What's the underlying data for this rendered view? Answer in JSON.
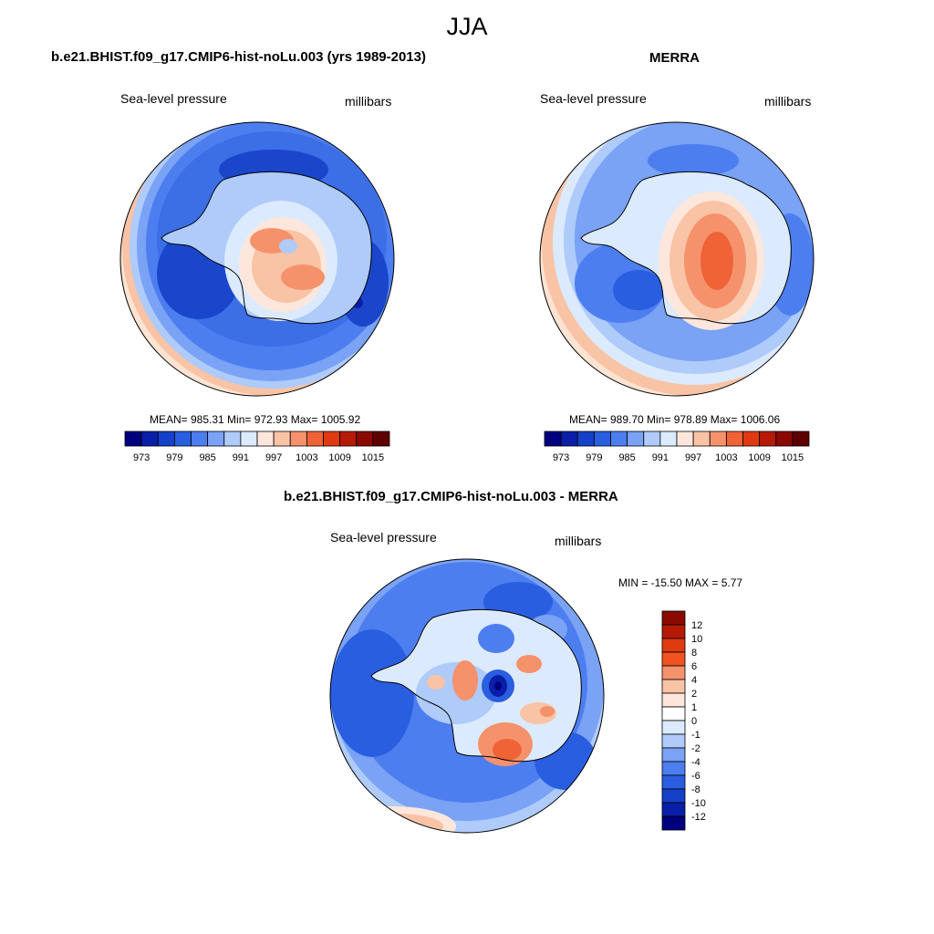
{
  "figure": {
    "season": "JJA"
  },
  "panels": [
    {
      "title": "b.e21.BHIST.f09_g17.CMIP6-hist-noLu.003 (yrs 1989-2013)",
      "left_label": "Sea-level pressure",
      "right_label": "millibars",
      "stats": "MEAN= 985.31   Min= 972.93   Max= 1005.92",
      "colorbar": {
        "orientation": "horizontal",
        "levels": [
          973,
          976,
          979,
          982,
          985,
          988,
          991,
          994,
          997,
          1000,
          1003,
          1006,
          1009,
          1012,
          1015
        ],
        "labels": [
          "973",
          "979",
          "985",
          "991",
          "997",
          "1003",
          "1009",
          "1015"
        ],
        "colors": [
          "#00007f",
          "#0a1fa8",
          "#1540c8",
          "#2a5ee0",
          "#4d7ef0",
          "#7aa2f5",
          "#aecbfa",
          "#dceafd",
          "#fde7dc",
          "#f9c3a5",
          "#f5926c",
          "#ef6337",
          "#e03a12",
          "#b51a07",
          "#8a0a02",
          "#5e0000"
        ]
      }
    },
    {
      "title": "MERRA",
      "left_label": "Sea-level pressure",
      "right_label": "millibars",
      "stats": "MEAN= 989.70   Min= 978.89   Max= 1006.06",
      "colorbar": {
        "orientation": "horizontal",
        "levels": [
          973,
          976,
          979,
          982,
          985,
          988,
          991,
          994,
          997,
          1000,
          1003,
          1006,
          1009,
          1012,
          1015
        ],
        "labels": [
          "973",
          "979",
          "985",
          "991",
          "997",
          "1003",
          "1009",
          "1015"
        ],
        "colors": [
          "#00007f",
          "#0a1fa8",
          "#1540c8",
          "#2a5ee0",
          "#4d7ef0",
          "#7aa2f5",
          "#aecbfa",
          "#dceafd",
          "#fde7dc",
          "#f9c3a5",
          "#f5926c",
          "#ef6337",
          "#e03a12",
          "#b51a07",
          "#8a0a02",
          "#5e0000"
        ]
      }
    },
    {
      "title": "b.e21.BHIST.f09_g17.CMIP6-hist-noLu.003 - MERRA",
      "left_label": "Sea-level pressure",
      "right_label": "millibars",
      "stats": "MIN = -15.50 MAX =    5.77",
      "colorbar": {
        "orientation": "vertical",
        "levels": [
          12,
          10,
          8,
          6,
          4,
          2,
          1,
          0,
          -1,
          -2,
          -4,
          -6,
          -8,
          -10,
          -12
        ],
        "labels": [
          "12",
          "10",
          "8",
          "6",
          "4",
          "2",
          "1",
          "0",
          "-1",
          "-2",
          "-4",
          "-6",
          "-8",
          "-10",
          "-12"
        ],
        "colors": [
          "#8a0a02",
          "#b51a07",
          "#e03a12",
          "#f0531f",
          "#f5926c",
          "#f9c3a5",
          "#fde7dc",
          "#ffffff",
          "#dceafd",
          "#aecbfa",
          "#7aa2f5",
          "#4d7ef0",
          "#2a5ee0",
          "#1540c8",
          "#0a1fa8",
          "#00007f"
        ]
      }
    }
  ],
  "colors": {
    "ocean_mid": "#3c6ee6",
    "ocean_deep": "#1a46cc",
    "ocean_light": "#8fb2f5",
    "ridge": "#f7b896",
    "land_high": "#f08860",
    "coast": "#000000"
  }
}
